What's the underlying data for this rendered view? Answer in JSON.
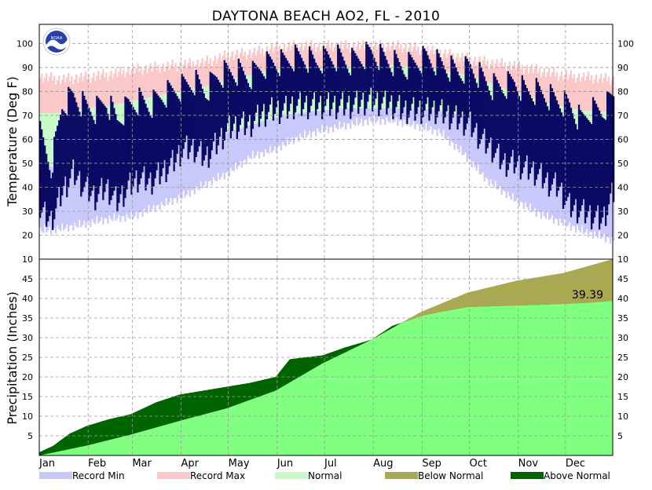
{
  "title": "DAYTONA BEACH AO2, FL - 2010",
  "colors": {
    "record_min": "#c8c8fa",
    "record_max": "#fac8c8",
    "normal": "#c8fac8",
    "observed": "#0a0a64",
    "precip_normal_fill": "#80ff80",
    "below_normal": "#aaa850",
    "above_normal": "#006400",
    "grid": "#9a9a9a"
  },
  "logo_text": "NOAA",
  "chart_data": [
    {
      "type": "bar",
      "name": "temperature",
      "ylabel": "Temperature (Deg F)",
      "ylim": [
        10,
        108
      ],
      "yticks": [
        20,
        30,
        40,
        50,
        60,
        70,
        80,
        90,
        100
      ],
      "grid": true,
      "months": [
        "Jan",
        "Feb",
        "Mar",
        "Apr",
        "May",
        "Jun",
        "Jul",
        "Aug",
        "Sep",
        "Oct",
        "Nov",
        "Dec"
      ],
      "month_starts_doy": [
        1,
        32,
        60,
        91,
        121,
        152,
        182,
        213,
        244,
        274,
        305,
        335
      ],
      "series_colors_legend": [
        "Record Min",
        "Record Max",
        "Normal"
      ],
      "record_max_doy": [
        1,
        15,
        30,
        45,
        60,
        75,
        90,
        105,
        120,
        135,
        150,
        165,
        180,
        195,
        210,
        225,
        240,
        255,
        270,
        285,
        300,
        315,
        330,
        345,
        365
      ],
      "record_max": [
        86,
        85,
        86,
        87,
        89,
        90,
        91,
        92,
        95,
        96,
        98,
        99,
        99,
        99,
        99,
        99,
        98,
        96,
        94,
        92,
        91,
        89,
        87,
        86,
        85
      ],
      "normal_high": [
        71,
        71,
        73,
        74,
        76,
        78,
        80,
        82,
        85,
        87,
        89,
        90,
        90,
        90,
        91,
        91,
        90,
        89,
        87,
        84,
        80,
        77,
        74,
        72,
        71
      ],
      "normal_low": [
        49,
        48,
        49,
        51,
        54,
        56,
        58,
        60,
        63,
        66,
        69,
        71,
        72,
        73,
        73,
        73,
        73,
        72,
        70,
        66,
        61,
        56,
        52,
        50,
        48
      ],
      "record_min": [
        24,
        25,
        27,
        29,
        30,
        34,
        38,
        43,
        48,
        55,
        58,
        63,
        66,
        68,
        70,
        70,
        68,
        65,
        56,
        45,
        38,
        32,
        28,
        24,
        20
      ],
      "observed_doy": [
        1,
        8,
        15,
        22,
        29,
        36,
        43,
        50,
        57,
        64,
        71,
        78,
        85,
        92,
        99,
        106,
        113,
        120,
        127,
        134,
        141,
        148,
        155,
        162,
        169,
        176,
        183,
        190,
        197,
        204,
        211,
        218,
        225,
        232,
        239,
        246,
        253,
        260,
        267,
        274,
        281,
        288,
        295,
        302,
        309,
        316,
        323,
        330,
        337,
        344,
        351,
        358,
        365
      ],
      "observed_high": [
        62,
        48,
        74,
        78,
        74,
        72,
        76,
        68,
        74,
        76,
        74,
        78,
        80,
        82,
        84,
        80,
        86,
        88,
        88,
        86,
        90,
        92,
        92,
        94,
        94,
        92,
        94,
        94,
        92,
        94,
        96,
        94,
        92,
        90,
        92,
        94,
        92,
        90,
        88,
        90,
        86,
        82,
        82,
        84,
        80,
        80,
        78,
        76,
        74,
        68,
        72,
        72,
        78
      ],
      "observed_low": [
        30,
        26,
        38,
        46,
        40,
        36,
        40,
        34,
        40,
        44,
        42,
        46,
        50,
        56,
        56,
        52,
        58,
        64,
        66,
        66,
        70,
        72,
        72,
        74,
        74,
        74,
        74,
        74,
        74,
        75,
        76,
        75,
        74,
        72,
        72,
        72,
        72,
        70,
        68,
        66,
        60,
        56,
        50,
        50,
        48,
        46,
        42,
        40,
        32,
        30,
        28,
        26,
        38
      ]
    },
    {
      "type": "area",
      "name": "precipitation",
      "ylabel": "Precipitation (Inches)",
      "ylim": [
        0,
        50
      ],
      "yticks": [
        5,
        10,
        15,
        20,
        25,
        30,
        35,
        40,
        45
      ],
      "grid": true,
      "legend": [
        "Below Normal",
        "Above Normal"
      ],
      "normal_doy": [
        1,
        31,
        59,
        90,
        120,
        151,
        181,
        212,
        243,
        273,
        304,
        334,
        365
      ],
      "normal_cumulative": [
        0,
        2.5,
        5.3,
        8.8,
        12.0,
        16.5,
        23.5,
        29.5,
        36.5,
        41.5,
        44.5,
        46.5,
        50.0
      ],
      "observed_doy": [
        1,
        10,
        20,
        31,
        45,
        59,
        75,
        90,
        105,
        120,
        135,
        151,
        160,
        170,
        181,
        195,
        212,
        225,
        240,
        243,
        255,
        273,
        290,
        304,
        320,
        334,
        350,
        365
      ],
      "observed_cumulative": [
        0.8,
        2.5,
        5.5,
        7.5,
        9.2,
        10.5,
        13.5,
        15.5,
        16.5,
        17.5,
        18.5,
        20.0,
        24.5,
        25.0,
        25.5,
        27.5,
        29.5,
        33.0,
        35.0,
        35.5,
        36.5,
        37.8,
        38.0,
        38.2,
        38.4,
        38.6,
        38.9,
        39.39
      ],
      "annotation": "39.39"
    }
  ]
}
